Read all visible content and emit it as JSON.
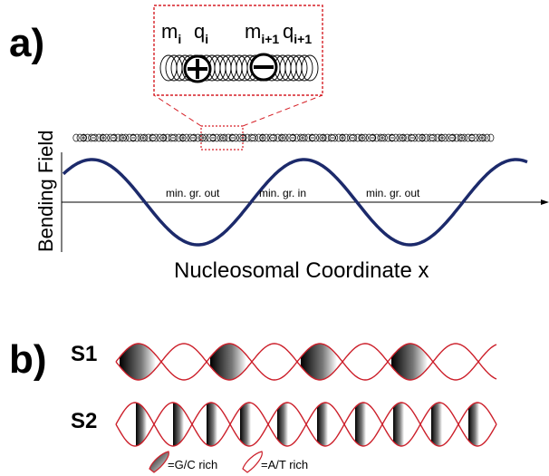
{
  "panel_a": {
    "label": "a)",
    "y_axis_label": "Bending Field",
    "x_axis_label": "Nucleosomal Coordinate x",
    "regions": [
      "min. gr. out",
      "min. gr. in",
      "min. gr. out"
    ],
    "inset": {
      "left_m": "m",
      "left_m_sub": "i",
      "left_q": "q",
      "left_q_sub": "i",
      "right_m": "m",
      "right_m_sub": "i+1",
      "right_q": "q",
      "right_q_sub": "i+1"
    }
  },
  "panel_b": {
    "label": "b)",
    "sequences": [
      "S1",
      "S2"
    ],
    "legend": {
      "gc_label": "=G/C rich",
      "at_label": "=A/T rich"
    }
  },
  "colors": {
    "wave": "#1c2a6b",
    "helix": "#cc1f2a",
    "inset_box": "#d61f26"
  }
}
